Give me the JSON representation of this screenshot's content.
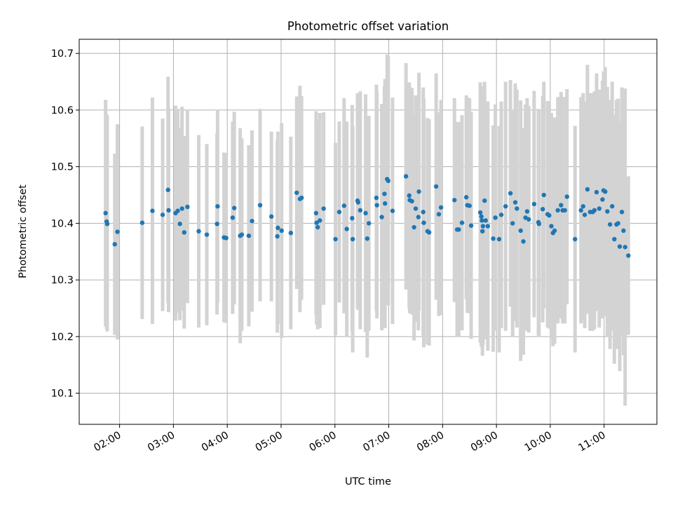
{
  "chart_data": {
    "type": "scatter",
    "title": "Photometric offset variation",
    "xlabel": "UTC time",
    "ylabel": "Photometric offset",
    "x_unit": "hours UTC",
    "xlim": [
      1.25,
      11.98
    ],
    "ylim": [
      10.045,
      10.725
    ],
    "x_ticks": [
      {
        "value": 2,
        "label": "02:00"
      },
      {
        "value": 3,
        "label": "03:00"
      },
      {
        "value": 4,
        "label": "04:00"
      },
      {
        "value": 5,
        "label": "05:00"
      },
      {
        "value": 6,
        "label": "06:00"
      },
      {
        "value": 7,
        "label": "07:00"
      },
      {
        "value": 8,
        "label": "08:00"
      },
      {
        "value": 9,
        "label": "09:00"
      },
      {
        "value": 10,
        "label": "10:00"
      },
      {
        "value": 11,
        "label": "11:00"
      }
    ],
    "y_ticks": [
      {
        "value": 10.1,
        "label": "10.1"
      },
      {
        "value": 10.2,
        "label": "10.2"
      },
      {
        "value": 10.3,
        "label": "10.3"
      },
      {
        "value": 10.4,
        "label": "10.4"
      },
      {
        "value": 10.5,
        "label": "10.5"
      },
      {
        "value": 10.6,
        "label": "10.6"
      },
      {
        "value": 10.7,
        "label": "10.7"
      }
    ],
    "grid": true,
    "colors": {
      "points": "#1f77b4",
      "errorbars": "#d3d3d3",
      "grid": "#b0b0b0"
    },
    "points": [
      [
        1.74,
        10.418,
        0.2
      ],
      [
        1.76,
        10.403,
        0.19
      ],
      [
        1.77,
        10.399,
        0.19
      ],
      [
        1.91,
        10.363,
        0.16
      ],
      [
        1.96,
        10.385,
        0.19
      ],
      [
        2.42,
        10.401,
        0.17
      ],
      [
        2.61,
        10.422,
        0.2
      ],
      [
        2.8,
        10.415,
        0.17
      ],
      [
        2.9,
        10.459,
        0.2
      ],
      [
        2.91,
        10.423,
        0.18
      ],
      [
        3.04,
        10.418,
        0.19
      ],
      [
        3.08,
        10.422,
        0.18
      ],
      [
        3.12,
        10.399,
        0.17
      ],
      [
        3.16,
        10.426,
        0.18
      ],
      [
        3.2,
        10.384,
        0.17
      ],
      [
        3.26,
        10.429,
        0.17
      ],
      [
        3.47,
        10.386,
        0.17
      ],
      [
        3.62,
        10.38,
        0.16
      ],
      [
        3.81,
        10.399,
        0.16
      ],
      [
        3.82,
        10.43,
        0.17
      ],
      [
        3.94,
        10.375,
        0.15
      ],
      [
        3.98,
        10.374,
        0.15
      ],
      [
        4.1,
        10.41,
        0.17
      ],
      [
        4.13,
        10.427,
        0.17
      ],
      [
        4.24,
        10.378,
        0.19
      ],
      [
        4.27,
        10.38,
        0.17
      ],
      [
        4.4,
        10.378,
        0.16
      ],
      [
        4.46,
        10.404,
        0.16
      ],
      [
        4.61,
        10.432,
        0.17
      ],
      [
        4.82,
        10.412,
        0.15
      ],
      [
        4.93,
        10.377,
        0.17
      ],
      [
        4.94,
        10.392,
        0.17
      ],
      [
        5.01,
        10.387,
        0.19
      ],
      [
        5.18,
        10.383,
        0.17
      ],
      [
        5.29,
        10.454,
        0.17
      ],
      [
        5.35,
        10.443,
        0.2
      ],
      [
        5.38,
        10.445,
        0.18
      ],
      [
        5.65,
        10.418,
        0.18
      ],
      [
        5.66,
        10.401,
        0.18
      ],
      [
        5.68,
        10.393,
        0.18
      ],
      [
        5.72,
        10.405,
        0.19
      ],
      [
        5.79,
        10.426,
        0.17
      ],
      [
        6.01,
        10.372,
        0.17
      ],
      [
        6.08,
        10.42,
        0.16
      ],
      [
        6.17,
        10.431,
        0.19
      ],
      [
        6.22,
        10.39,
        0.19
      ],
      [
        6.32,
        10.409,
        0.2
      ],
      [
        6.33,
        10.372,
        0.2
      ],
      [
        6.42,
        10.44,
        0.19
      ],
      [
        6.43,
        10.437,
        0.19
      ],
      [
        6.47,
        10.423,
        0.21
      ],
      [
        6.57,
        10.418,
        0.21
      ],
      [
        6.6,
        10.373,
        0.21
      ],
      [
        6.63,
        10.4,
        0.19
      ],
      [
        6.77,
        10.445,
        0.2
      ],
      [
        6.78,
        10.432,
        0.2
      ],
      [
        6.87,
        10.411,
        0.2
      ],
      [
        6.92,
        10.452,
        0.19
      ],
      [
        6.93,
        10.435,
        0.22
      ],
      [
        6.97,
        10.478,
        0.22
      ],
      [
        6.99,
        10.475,
        0.22
      ],
      [
        7.07,
        10.422,
        0.2
      ],
      [
        7.32,
        10.483,
        0.2
      ],
      [
        7.38,
        10.449,
        0.2
      ],
      [
        7.39,
        10.441,
        0.2
      ],
      [
        7.43,
        10.439,
        0.2
      ],
      [
        7.47,
        10.393,
        0.2
      ],
      [
        7.5,
        10.426,
        0.2
      ],
      [
        7.55,
        10.411,
        0.2
      ],
      [
        7.56,
        10.456,
        0.21
      ],
      [
        7.64,
        10.42,
        0.22
      ],
      [
        7.65,
        10.401,
        0.22
      ],
      [
        7.72,
        10.386,
        0.2
      ],
      [
        7.75,
        10.384,
        0.2
      ],
      [
        7.88,
        10.465,
        0.2
      ],
      [
        7.93,
        10.416,
        0.18
      ],
      [
        7.97,
        10.428,
        0.19
      ],
      [
        8.22,
        10.441,
        0.18
      ],
      [
        8.27,
        10.389,
        0.19
      ],
      [
        8.3,
        10.389,
        0.19
      ],
      [
        8.36,
        10.401,
        0.19
      ],
      [
        8.44,
        10.446,
        0.18
      ],
      [
        8.46,
        10.432,
        0.19
      ],
      [
        8.5,
        10.431,
        0.19
      ],
      [
        8.53,
        10.396,
        0.2
      ],
      [
        8.7,
        10.419,
        0.23
      ],
      [
        8.72,
        10.412,
        0.23
      ],
      [
        8.73,
        10.405,
        0.22
      ],
      [
        8.74,
        10.386,
        0.22
      ],
      [
        8.75,
        10.395,
        0.21
      ],
      [
        8.78,
        10.44,
        0.21
      ],
      [
        8.8,
        10.405,
        0.21
      ],
      [
        8.84,
        10.395,
        0.22
      ],
      [
        8.94,
        10.373,
        0.2
      ],
      [
        8.98,
        10.41,
        0.2
      ],
      [
        9.05,
        10.372,
        0.2
      ],
      [
        9.09,
        10.415,
        0.2
      ],
      [
        9.17,
        10.43,
        0.22
      ],
      [
        9.26,
        10.453,
        0.2
      ],
      [
        9.3,
        10.4,
        0.2
      ],
      [
        9.35,
        10.437,
        0.21
      ],
      [
        9.38,
        10.426,
        0.21
      ],
      [
        9.45,
        10.387,
        0.23
      ],
      [
        9.5,
        10.368,
        0.2
      ],
      [
        9.54,
        10.41,
        0.2
      ],
      [
        9.57,
        10.421,
        0.2
      ],
      [
        9.6,
        10.407,
        0.2
      ],
      [
        9.7,
        10.434,
        0.2
      ],
      [
        9.78,
        10.402,
        0.2
      ],
      [
        9.79,
        10.399,
        0.2
      ],
      [
        9.86,
        10.425,
        0.2
      ],
      [
        9.88,
        10.45,
        0.2
      ],
      [
        9.95,
        10.416,
        0.2
      ],
      [
        9.98,
        10.414,
        0.2
      ],
      [
        10.02,
        10.395,
        0.2
      ],
      [
        10.05,
        10.383,
        0.2
      ],
      [
        10.08,
        10.387,
        0.2
      ],
      [
        10.14,
        10.423,
        0.2
      ],
      [
        10.2,
        10.432,
        0.2
      ],
      [
        10.23,
        10.423,
        0.2
      ],
      [
        10.27,
        10.423,
        0.2
      ],
      [
        10.31,
        10.447,
        0.19
      ],
      [
        10.46,
        10.372,
        0.2
      ],
      [
        10.57,
        10.423,
        0.2
      ],
      [
        10.61,
        10.43,
        0.2
      ],
      [
        10.64,
        10.415,
        0.2
      ],
      [
        10.69,
        10.46,
        0.22
      ],
      [
        10.74,
        10.42,
        0.21
      ],
      [
        10.79,
        10.42,
        0.21
      ],
      [
        10.82,
        10.423,
        0.21
      ],
      [
        10.86,
        10.455,
        0.21
      ],
      [
        10.91,
        10.426,
        0.21
      ],
      [
        10.97,
        10.442,
        0.21
      ],
      [
        10.99,
        10.458,
        0.21
      ],
      [
        11.02,
        10.456,
        0.22
      ],
      [
        11.06,
        10.421,
        0.22
      ],
      [
        11.11,
        10.398,
        0.22
      ],
      [
        11.15,
        10.43,
        0.22
      ],
      [
        11.19,
        10.372,
        0.22
      ],
      [
        11.23,
        10.398,
        0.22
      ],
      [
        11.26,
        10.4,
        0.22
      ],
      [
        11.29,
        10.359,
        0.22
      ],
      [
        11.33,
        10.42,
        0.22
      ],
      [
        11.36,
        10.387,
        0.22
      ],
      [
        11.39,
        10.358,
        0.28
      ],
      [
        11.45,
        10.343,
        0.14
      ]
    ]
  }
}
